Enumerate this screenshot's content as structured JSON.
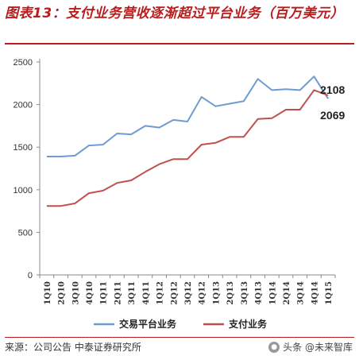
{
  "figure": {
    "title": "图表13：支付业务营收逐渐超过平台业务（百万美元）",
    "source": "来源：公司公告  中泰证券研究所",
    "watermark": "头条 @未来智库"
  },
  "chart_data": {
    "type": "line",
    "title": "",
    "xlabel": "",
    "ylabel": "",
    "ylim": [
      0,
      2500
    ],
    "yticks": [
      0,
      500,
      1000,
      1500,
      2000,
      2500
    ],
    "grid": false,
    "legend_position": "bottom",
    "categories": [
      "1Q10",
      "2Q10",
      "3Q10",
      "4Q10",
      "1Q11",
      "2Q11",
      "3Q11",
      "4Q11",
      "1Q12",
      "2Q12",
      "3Q12",
      "4Q12",
      "1Q13",
      "2Q13",
      "3Q13",
      "4Q13",
      "1Q14",
      "2Q14",
      "3Q14",
      "4Q14",
      "1Q15"
    ],
    "series": [
      {
        "name": "交易平台业务",
        "color": "#6f9bd1",
        "values": [
          1390,
          1390,
          1400,
          1520,
          1530,
          1660,
          1650,
          1750,
          1730,
          1820,
          1800,
          2090,
          1980,
          2010,
          2040,
          2300,
          2170,
          2180,
          2170,
          2330,
          2069
        ]
      },
      {
        "name": "支付业务",
        "color": "#c0504d",
        "values": [
          810,
          810,
          840,
          960,
          990,
          1080,
          1110,
          1210,
          1300,
          1360,
          1360,
          1530,
          1550,
          1620,
          1620,
          1830,
          1840,
          1940,
          1940,
          2170,
          2108
        ]
      }
    ],
    "annotations": [
      {
        "text": "2108",
        "series": 1,
        "index": 20
      },
      {
        "text": "2069",
        "series": 0,
        "index": 20
      }
    ]
  }
}
